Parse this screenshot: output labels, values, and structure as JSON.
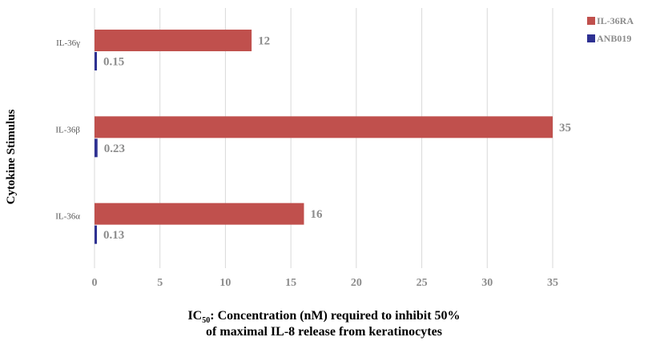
{
  "chart_data": {
    "type": "bar",
    "orientation": "horizontal",
    "categories": [
      "IL-36γ",
      "IL-36β",
      "IL-36α"
    ],
    "series": [
      {
        "name": "IL-36RA",
        "values": [
          12,
          35,
          16
        ],
        "labels": [
          "12",
          "35",
          "16"
        ],
        "color": "#c0504d"
      },
      {
        "name": "ANB019",
        "values": [
          0.15,
          0.23,
          0.13
        ],
        "labels": [
          "0.15",
          "0.23",
          "0.13"
        ],
        "color": "#2e3192"
      }
    ],
    "xlim": [
      0,
      35
    ],
    "xticks": [
      0,
      5,
      10,
      15,
      20,
      25,
      30,
      35
    ],
    "xtick_labels": [
      "0",
      "5",
      "10",
      "15",
      "20",
      "25",
      "30",
      "35"
    ],
    "xlabel": {
      "line1_prefix": "IC",
      "line1_sub": "50",
      "line1_rest": ": Concentration (nM) required to inhibit 50%",
      "line2": "of maximal IL-8 release from keratinocytes"
    },
    "ylabel": "Cytokine Stimulus",
    "grid": "vertical",
    "legend_position": "top-right"
  }
}
